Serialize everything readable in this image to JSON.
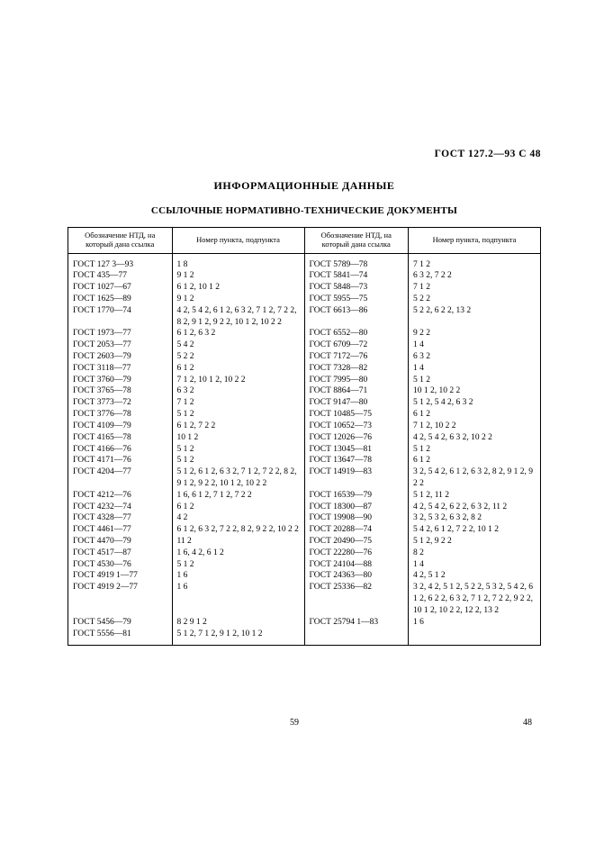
{
  "header_right": "ГОСТ 127.2—93  С 48",
  "title1": "ИНФОРМАЦИОННЫЕ ДАННЫЕ",
  "title2": "ССЫЛОЧНЫЕ НОРМАТИВНО-ТЕХНИЧЕСКИЕ ДОКУМЕНТЫ",
  "th_left_a": "Обозначение НТД, на который дана ссылка",
  "th_left_b": "Номер пункта, подпункта",
  "th_right_a": "Обозначение НТД, на который дана ссылка",
  "th_right_b": "Номер пункта, подпункта",
  "left": [
    {
      "a": "ГОСТ 127 3—93",
      "b": "1 8"
    },
    {
      "a": "ГОСТ 435—77",
      "b": "9 1 2"
    },
    {
      "a": "ГОСТ 1027—67",
      "b": "6 1 2,  10 1 2"
    },
    {
      "a": "ГОСТ 1625—89",
      "b": "9 1 2"
    },
    {
      "a": "ГОСТ 1770—74",
      "b": "4 2, 5 4 2, 6 1 2, 6 3 2, 7 1 2,  7 2 2,  8 2, 9 1 2,  9 2 2,  10 1 2, 10 2 2"
    },
    {
      "a": "ГОСТ 1973—77",
      "b": "6 1 2, 6 3 2"
    },
    {
      "a": "ГОСТ 2053—77",
      "b": "5 4 2"
    },
    {
      "a": "ГОСТ 2603—79",
      "b": "5 2 2"
    },
    {
      "a": "ГОСТ 3118—77",
      "b": "6 1 2"
    },
    {
      "a": "ГОСТ 3760—79",
      "b": "7 1 2,  10 1 2,  10 2 2"
    },
    {
      "a": "ГОСТ 3765—78",
      "b": "6 3 2"
    },
    {
      "a": "ГОСТ 3773—72",
      "b": "7 1 2"
    },
    {
      "a": "ГОСТ 3776—78",
      "b": "5 1 2"
    },
    {
      "a": "ГОСТ 4109—79",
      "b": "6 1 2, 7 2 2"
    },
    {
      "a": "ГОСТ 4165—78",
      "b": "10 1 2"
    },
    {
      "a": "ГОСТ 4166—76",
      "b": "5 1 2"
    },
    {
      "a": "ГОСТ 4171—76",
      "b": "5 1 2"
    },
    {
      "a": "ГОСТ 4204—77",
      "b": "5 1 2,  6 1 2,  6 3 2, 7 1 2,  7 2 2,  8 2, 9 1 2,  9 2 2,  10 1 2, 10 2 2"
    },
    {
      "a": "ГОСТ 4212—76",
      "b": "1 6, 6 1 2, 7 1 2, 7 2 2"
    },
    {
      "a": "ГОСТ 4232—74",
      "b": "6 1 2"
    },
    {
      "a": "ГОСТ 4328—77",
      "b": "4 2"
    },
    {
      "a": "ГОСТ 4461—77",
      "b": "6 1 2,  6 3 2,  7 2 2, 8 2, 9 2 2,  10 2 2"
    },
    {
      "a": "ГОСТ 4470—79",
      "b": "11 2"
    },
    {
      "a": "ГОСТ 4517—87",
      "b": "1 6,  4 2,  6 1 2"
    },
    {
      "a": "ГОСТ 4530—76",
      "b": "5 1 2"
    },
    {
      "a": "ГОСТ 4919 1—77",
      "b": "1 6"
    },
    {
      "a": "ГОСТ 4919 2—77",
      "b": "1 6"
    },
    {
      "a": "ГОСТ 5456—79",
      "b": "8 2  9 1 2"
    },
    {
      "a": "ГОСТ 5556—81",
      "b": "5 1 2,  7 1 2,  9 1 2, 10 1 2"
    }
  ],
  "right": [
    {
      "a": "ГОСТ 5789—78",
      "b": "7 1 2"
    },
    {
      "a": "ГОСТ 5841—74",
      "b": "6 3 2, 7 2 2"
    },
    {
      "a": "ГОСТ 5848—73",
      "b": "7 1 2"
    },
    {
      "a": "ГОСТ 5955—75",
      "b": "5 2 2"
    },
    {
      "a": "ГОСТ 6613—86",
      "b": "5 2 2, 6 2 2,  13 2"
    },
    {
      "a": "ГОСТ 6552—80",
      "b": "9 2 2"
    },
    {
      "a": "ГОСТ 6709—72",
      "b": "1 4"
    },
    {
      "a": "ГОСТ 7172—76",
      "b": "6 3 2"
    },
    {
      "a": "ГОСТ 7328—82",
      "b": "1 4"
    },
    {
      "a": "ГОСТ 7995—80",
      "b": "5 1 2"
    },
    {
      "a": "ГОСТ 8864—71",
      "b": "10 1 2,  10 2 2"
    },
    {
      "a": "ГОСТ 9147—80",
      "b": "5 1 2,  5 4 2,  6 3 2"
    },
    {
      "a": "ГОСТ 10485—75",
      "b": "6 1 2"
    },
    {
      "a": "ГОСТ 10652—73",
      "b": "7 1 2,  10 2 2"
    },
    {
      "a": "ГОСТ 12026—76",
      "b": "4 2,  5 4 2,  6 3 2, 10 2 2"
    },
    {
      "a": "ГОСТ 13045—81",
      "b": "5 1 2"
    },
    {
      "a": "ГОСТ 13647—78",
      "b": "6 1 2"
    },
    {
      "a": "ГОСТ 14919—83",
      "b": "3 2,  5 4 2,  6 1 2, 6 3 2,  8 2,  9 1 2, 9 2 2"
    },
    {
      "a": "ГОСТ 16539—79",
      "b": "5 1 2,  11 2"
    },
    {
      "a": "ГОСТ 18300—87",
      "b": "4 2,  5 4 2,  6 2 2, 6 3 2, 11 2"
    },
    {
      "a": "ГОСТ 19908—90",
      "b": "3 2, 5 3 2, 6 3 2,  8 2"
    },
    {
      "a": "ГОСТ 20288—74",
      "b": "5 4 2,  6 1 2,  7 2 2, 10 1 2"
    },
    {
      "a": "ГОСТ 20490—75",
      "b": "5 1 2,  9 2 2"
    },
    {
      "a": "ГОСТ 22280—76",
      "b": "8 2"
    },
    {
      "a": "ГОСТ 24104—88",
      "b": "1 4"
    },
    {
      "a": "ГОСТ 24363—80",
      "b": "4 2,  5 1 2"
    },
    {
      "a": "ГОСТ 25336—82",
      "b": "3 2, 4 2, 5 1 2, 5 2 2, 5 3 2,  5 4 2,  6 1 2, 6 2 2,  6 3 2,  7 1 2, 7 2 2, 9 2 2,  10 1 2, 10 2 2,  12 2,  13 2"
    },
    {
      "a": "ГОСТ 25794 1—83",
      "b": "1 6"
    }
  ],
  "page_center": "59",
  "page_right": "48",
  "styles": {
    "background_color": "#ffffff",
    "text_color": "#000000",
    "border_color": "#000000",
    "body_fontsize": 9.5,
    "header_fontsize": 8.5,
    "title_fontsize": 12
  }
}
